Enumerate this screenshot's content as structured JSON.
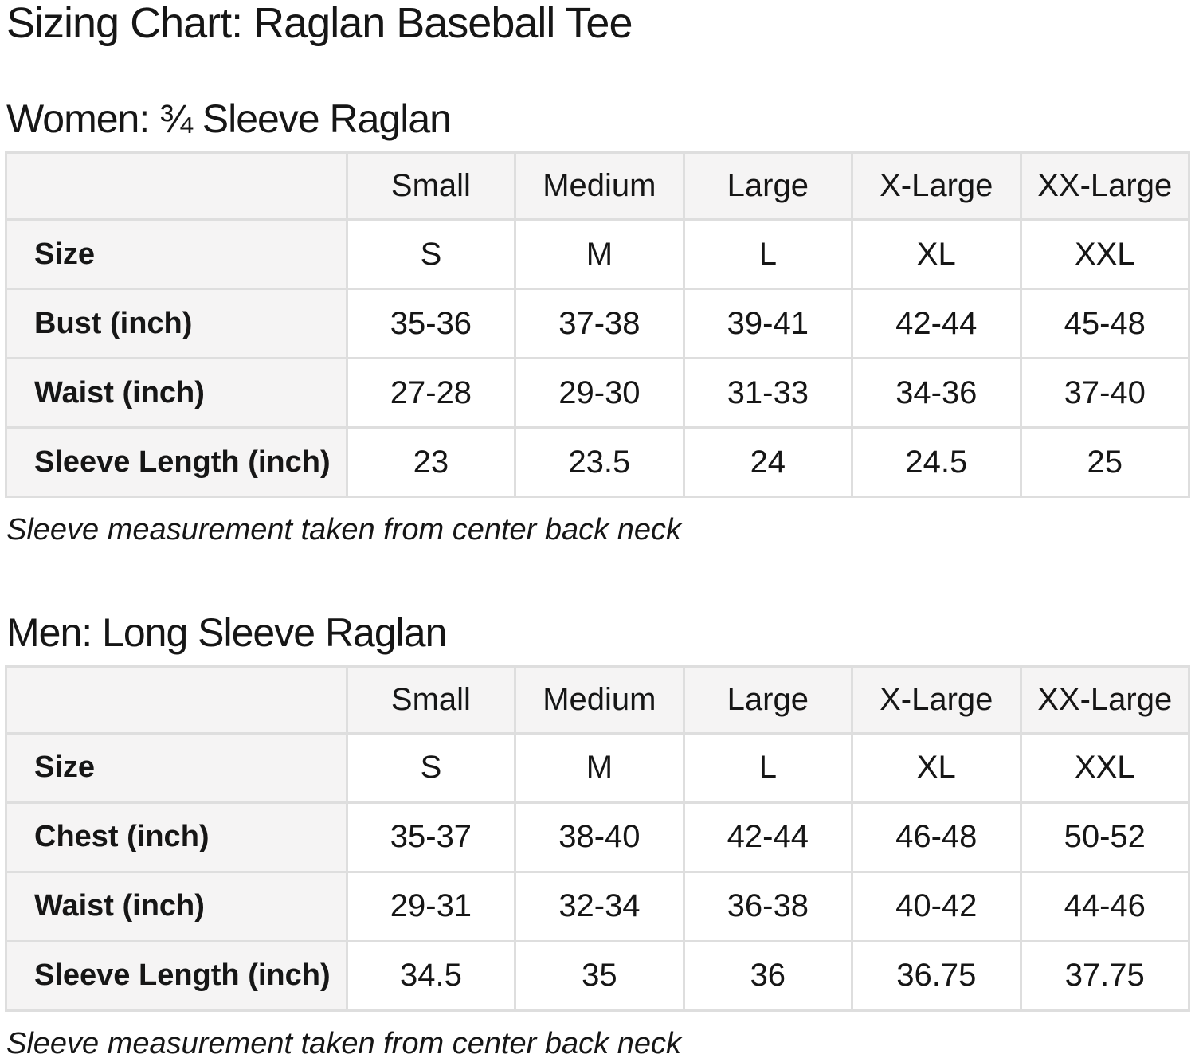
{
  "page": {
    "title": "Sizing Chart: Raglan Baseball Tee"
  },
  "colors": {
    "header_cell_bg": "#f5f4f4",
    "data_cell_bg": "#ffffff",
    "table_border": "#dedede",
    "text": "#161616"
  },
  "sections": [
    {
      "heading": "Women: ¾ Sleeve Raglan",
      "note": "Sleeve measurement taken from center back neck",
      "table": {
        "columns": [
          "",
          "Small",
          "Medium",
          "Large",
          "X-Large",
          "XX-Large"
        ],
        "rows": [
          {
            "label": "Size",
            "values": [
              "S",
              "M",
              "L",
              "XL",
              "XXL"
            ]
          },
          {
            "label": "Bust (inch)",
            "values": [
              "35-36",
              "37-38",
              "39-41",
              "42-44",
              "45-48"
            ]
          },
          {
            "label": "Waist (inch)",
            "values": [
              "27-28",
              "29-30",
              "31-33",
              "34-36",
              "37-40"
            ]
          },
          {
            "label": "Sleeve Length (inch)",
            "values": [
              "23",
              "23.5",
              "24",
              "24.5",
              "25"
            ]
          }
        ]
      }
    },
    {
      "heading": "Men: Long Sleeve Raglan",
      "note": "Sleeve measurement taken from center back neck",
      "table": {
        "columns": [
          "",
          "Small",
          "Medium",
          "Large",
          "X-Large",
          "XX-Large"
        ],
        "rows": [
          {
            "label": "Size",
            "values": [
              "S",
              "M",
              "L",
              "XL",
              "XXL"
            ]
          },
          {
            "label": "Chest (inch)",
            "values": [
              "35-37",
              "38-40",
              "42-44",
              "46-48",
              "50-52"
            ]
          },
          {
            "label": "Waist (inch)",
            "values": [
              "29-31",
              "32-34",
              "36-38",
              "40-42",
              "44-46"
            ]
          },
          {
            "label": "Sleeve Length (inch)",
            "values": [
              "34.5",
              "35",
              "36",
              "36.75",
              "37.75"
            ]
          }
        ]
      }
    }
  ]
}
